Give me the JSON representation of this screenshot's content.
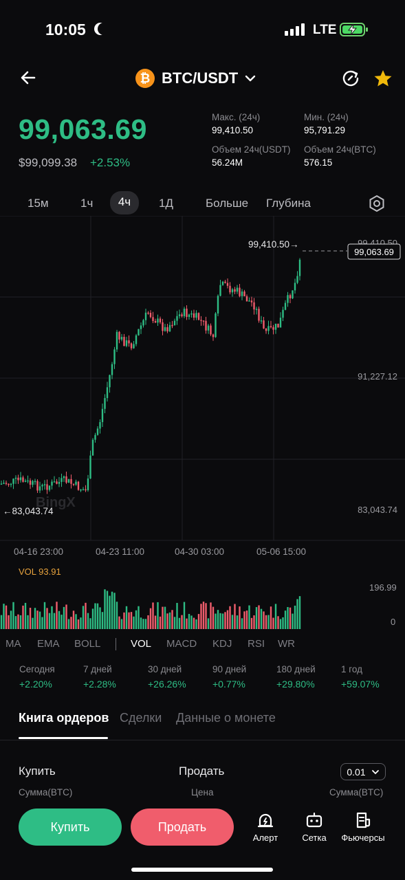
{
  "status_bar": {
    "time": "10:05",
    "network": "LTE",
    "icons": [
      "moon-icon",
      "signal-icon",
      "battery-charging-icon"
    ]
  },
  "header": {
    "pair": "BTC/USDT",
    "coin_symbol": "₿",
    "icons": [
      "back-arrow-icon",
      "chevron-down-icon",
      "refresh-icon",
      "star-icon"
    ],
    "star_color": "#f0b90b"
  },
  "price": {
    "last": "99,063.69",
    "usd": "$99,099.38",
    "change": "+2.53%",
    "high_label": "Макс. (24ч)",
    "high": "99,410.50",
    "low_label": "Мин. (24ч)",
    "low": "95,791.29",
    "vol_usdt_label": "Объем 24ч(USDT)",
    "vol_usdt": "56.24M",
    "vol_btc_label": "Объем 24ч(BTC)",
    "vol_btc": "576.15"
  },
  "time_tabs": [
    "15м",
    "1ч",
    "4ч",
    "1Д",
    "Больше",
    "Глубина"
  ],
  "chart": {
    "y_labels": [
      "99,410.50",
      "91,227.12",
      "83,043.74"
    ],
    "current_price_tag": "99,063.69",
    "max_annotation": "99,410.50→",
    "min_annotation": "←83,043.74",
    "watermark": "BingX",
    "x_labels": [
      "04-16 23:00",
      "04-23 11:00",
      "04-30 03:00",
      "05-06 15:00"
    ],
    "vol_label": "VOL 93.91",
    "vol_axis": [
      "196.99",
      "0"
    ],
    "colors": {
      "up": "#2ebd85",
      "down": "#f05d6c"
    }
  },
  "chart_data": {
    "type": "candlestick",
    "ylim": [
      83043.74,
      99410.5
    ],
    "y_ticks": [
      83043.74,
      91227.12,
      99410.5
    ],
    "x_ticks": [
      "04-16 23:00",
      "04-23 11:00",
      "04-30 03:00",
      "05-06 15:00"
    ],
    "high": 99410.5,
    "low": 83043.74,
    "last": 99063.69,
    "volume_last": 93.91,
    "volume_max_axis": 196.99
  },
  "indicators": [
    "MA",
    "EMA",
    "BOLL",
    "VOL",
    "MACD",
    "KDJ",
    "RSI",
    "WR"
  ],
  "performance": [
    {
      "label": "Сегодня",
      "value": "+2.20%"
    },
    {
      "label": "7 дней",
      "value": "+2.28%"
    },
    {
      "label": "30 дней",
      "value": "+26.26%"
    },
    {
      "label": "90 дней",
      "value": "+0.77%"
    },
    {
      "label": "180 дней",
      "value": "+29.80%"
    },
    {
      "label": "1 год",
      "value": "+59.07%"
    }
  ],
  "book_tabs": [
    "Книга ордеров",
    "Сделки",
    "Данные о монете"
  ],
  "order_book": {
    "buy_label": "Купить",
    "sell_label": "Продать",
    "precision": "0.01",
    "col_amount_left": "Сумма(BTC)",
    "col_price": "Цена",
    "col_amount_right": "Сумма(BTC)"
  },
  "bottom": {
    "buy": "Купить",
    "sell": "Продать",
    "alert": "Алерт",
    "grid": "Сетка",
    "futures": "Фьючерсы"
  }
}
